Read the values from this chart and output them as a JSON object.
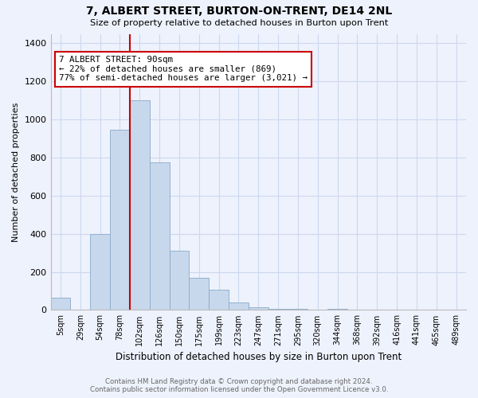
{
  "title1": "7, ALBERT STREET, BURTON-ON-TRENT, DE14 2NL",
  "title2": "Size of property relative to detached houses in Burton upon Trent",
  "xlabel": "Distribution of detached houses by size in Burton upon Trent",
  "ylabel": "Number of detached properties",
  "footer1": "Contains HM Land Registry data © Crown copyright and database right 2024.",
  "footer2": "Contains public sector information licensed under the Open Government Licence v3.0.",
  "categories": [
    "5sqm",
    "29sqm",
    "54sqm",
    "78sqm",
    "102sqm",
    "126sqm",
    "150sqm",
    "175sqm",
    "199sqm",
    "223sqm",
    "247sqm",
    "271sqm",
    "295sqm",
    "320sqm",
    "344sqm",
    "368sqm",
    "392sqm",
    "416sqm",
    "441sqm",
    "465sqm",
    "489sqm"
  ],
  "values": [
    65,
    0,
    400,
    945,
    1100,
    775,
    310,
    170,
    105,
    40,
    15,
    8,
    4,
    2,
    8,
    1,
    0,
    0,
    0,
    0,
    0
  ],
  "bar_color": "#c8d8ec",
  "bar_edge_color": "#88aac8",
  "grid_color": "#ccd8f0",
  "bg_color": "#eef2fc",
  "annotation_box_color": "#ffffff",
  "annotation_border_color": "#cc0000",
  "vline_color": "#cc0000",
  "vline_x": 3.5,
  "annotation_text1": "7 ALBERT STREET: 90sqm",
  "annotation_text2": "← 22% of detached houses are smaller (869)",
  "annotation_text3": "77% of semi-detached houses are larger (3,021) →",
  "ylim": [
    0,
    1450
  ],
  "yticks": [
    0,
    200,
    400,
    600,
    800,
    1000,
    1200,
    1400
  ]
}
